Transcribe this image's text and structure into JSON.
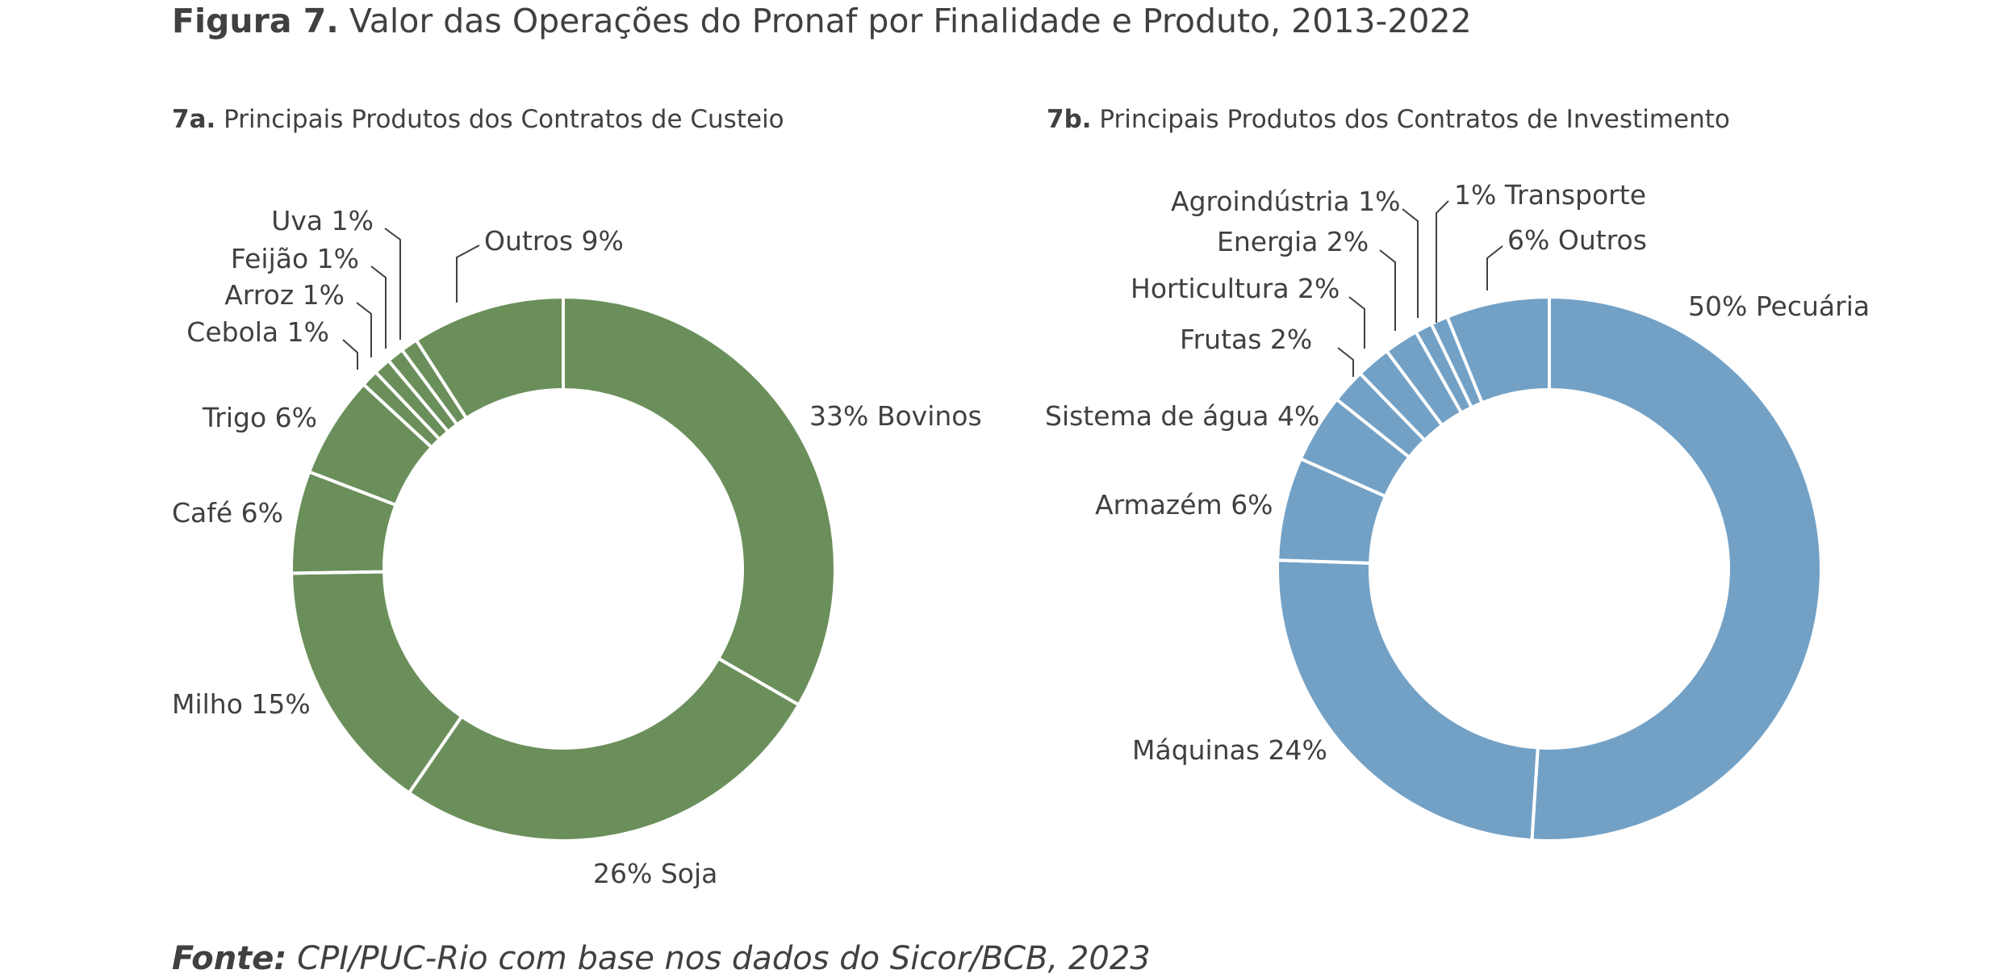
{
  "figure": {
    "label": "Figura 7.",
    "title": "Valor das Operações do Pronaf por Finalidade e Produto, 2013-2022"
  },
  "source": {
    "label": "Fonte:",
    "text": "CPI/PUC-Rio com base nos dados do Sicor/BCB, 2023"
  },
  "chart_data": [
    {
      "type": "pie",
      "donut": true,
      "panel": "7a.",
      "title": "Principais Produtos dos Contratos de Custeio",
      "color": "#6b8f5a",
      "slices": [
        {
          "name": "Bovinos",
          "value": 33,
          "label": "33% Bovinos"
        },
        {
          "name": "Soja",
          "value": 26,
          "label": "26% Soja"
        },
        {
          "name": "Milho",
          "value": 15,
          "label": "Milho 15%"
        },
        {
          "name": "Café",
          "value": 6,
          "label": "Café 6%"
        },
        {
          "name": "Trigo",
          "value": 6,
          "label": "Trigo 6%"
        },
        {
          "name": "Cebola",
          "value": 1,
          "label": "Cebola 1%"
        },
        {
          "name": "Arroz",
          "value": 1,
          "label": "Arroz 1%"
        },
        {
          "name": "Feijão",
          "value": 1,
          "label": "Feijão 1%"
        },
        {
          "name": "Uva",
          "value": 1,
          "label": "Uva 1%"
        },
        {
          "name": "Outros",
          "value": 9,
          "label": "Outros 9%"
        }
      ]
    },
    {
      "type": "pie",
      "donut": true,
      "panel": "7b.",
      "title": "Principais Produtos dos Contratos de Investimento",
      "color": "#73a1c6",
      "slices": [
        {
          "name": "Pecuária",
          "value": 50,
          "label": "50% Pecuária"
        },
        {
          "name": "Máquinas",
          "value": 24,
          "label": "Máquinas 24%"
        },
        {
          "name": "Armazém",
          "value": 6,
          "label": "Armazém 6%"
        },
        {
          "name": "Sistema de água",
          "value": 4,
          "label": "Sistema de água 4%"
        },
        {
          "name": "Frutas",
          "value": 2,
          "label": "Frutas 2%"
        },
        {
          "name": "Horticultura",
          "value": 2,
          "label": "Horticultura 2%"
        },
        {
          "name": "Energia",
          "value": 2,
          "label": "Energia 2%"
        },
        {
          "name": "Agroindústria",
          "value": 1,
          "label": "Agroindústria 1%"
        },
        {
          "name": "Transporte",
          "value": 1,
          "label": "1% Transporte"
        },
        {
          "name": "Outros",
          "value": 6,
          "label": "6% Outros"
        }
      ]
    }
  ]
}
